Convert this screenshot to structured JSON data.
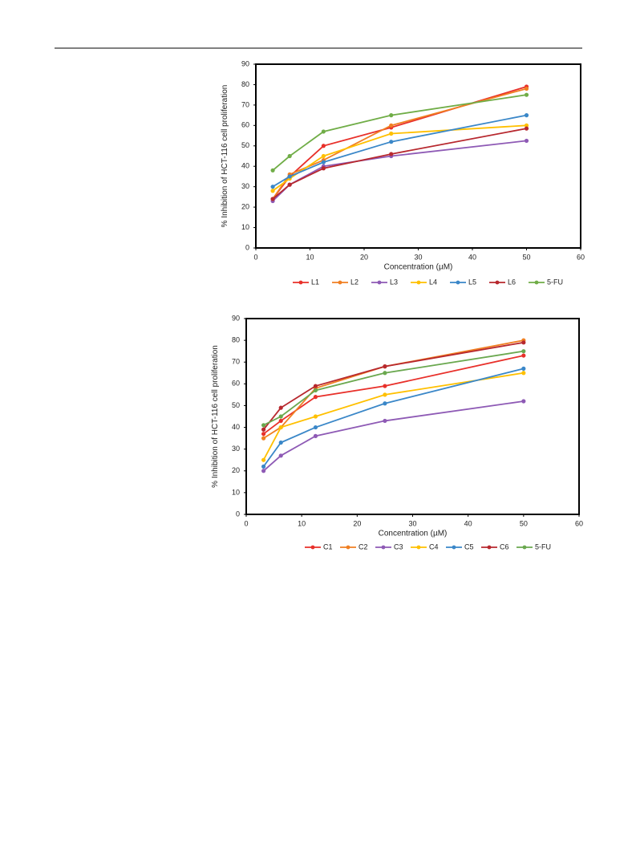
{
  "chart_data": [
    {
      "type": "line",
      "x_label": "Concentration (µM)",
      "y_label": "% Inhibition of  HCT-116 cell proliferation",
      "x": [
        3.125,
        6.25,
        12.5,
        25,
        50
      ],
      "xlim": [
        0,
        60
      ],
      "xticks": [
        0,
        10,
        20,
        30,
        40,
        50,
        60
      ],
      "ylim": [
        0,
        90
      ],
      "yticks": [
        0,
        10,
        20,
        30,
        40,
        50,
        60,
        70,
        80,
        90
      ],
      "series": [
        {
          "name": "L1",
          "color": "#e8302a",
          "values": [
            24,
            35,
            50,
            59,
            79
          ]
        },
        {
          "name": "L2",
          "color": "#f07f22",
          "values": [
            24,
            36,
            43,
            60,
            78
          ]
        },
        {
          "name": "L3",
          "color": "#8e5ab5",
          "values": [
            23,
            31,
            40,
            45,
            52.5
          ]
        },
        {
          "name": "L4",
          "color": "#ffc000",
          "values": [
            28,
            34,
            45,
            56,
            60
          ]
        },
        {
          "name": "L5",
          "color": "#3a87c8",
          "values": [
            30,
            35,
            42,
            52,
            65
          ]
        },
        {
          "name": "L6",
          "color": "#b7282e",
          "values": [
            24,
            31,
            39,
            46,
            58.5
          ]
        },
        {
          "name": "5-FU",
          "color": "#70ad47",
          "values": [
            38,
            45,
            57,
            65,
            75
          ]
        }
      ]
    },
    {
      "type": "line",
      "x_label": "Concentration (µM)",
      "y_label": "% Inhibition of HCT-116 cell proliferation",
      "x": [
        3.125,
        6.25,
        12.5,
        25,
        50
      ],
      "xlim": [
        0,
        60
      ],
      "xticks": [
        0,
        10,
        20,
        30,
        40,
        50,
        60
      ],
      "ylim": [
        0,
        90
      ],
      "yticks": [
        0,
        10,
        20,
        30,
        40,
        50,
        60,
        70,
        80,
        90
      ],
      "series": [
        {
          "name": "C1",
          "color": "#e8302a",
          "values": [
            37,
            43,
            54,
            59,
            73
          ]
        },
        {
          "name": "C2",
          "color": "#f07f22",
          "values": [
            35,
            40,
            58,
            68,
            80
          ]
        },
        {
          "name": "C3",
          "color": "#8e5ab5",
          "values": [
            20,
            27,
            36,
            43,
            52
          ]
        },
        {
          "name": "C4",
          "color": "#ffc000",
          "values": [
            25,
            40,
            45,
            55,
            65
          ]
        },
        {
          "name": "C5",
          "color": "#3a87c8",
          "values": [
            22,
            33,
            40,
            51,
            67
          ]
        },
        {
          "name": "C6",
          "color": "#b7282e",
          "values": [
            39,
            49,
            59,
            68,
            79
          ]
        },
        {
          "name": "5-FU",
          "color": "#6aa84f",
          "values": [
            41,
            45,
            57,
            65,
            75
          ]
        }
      ]
    }
  ]
}
